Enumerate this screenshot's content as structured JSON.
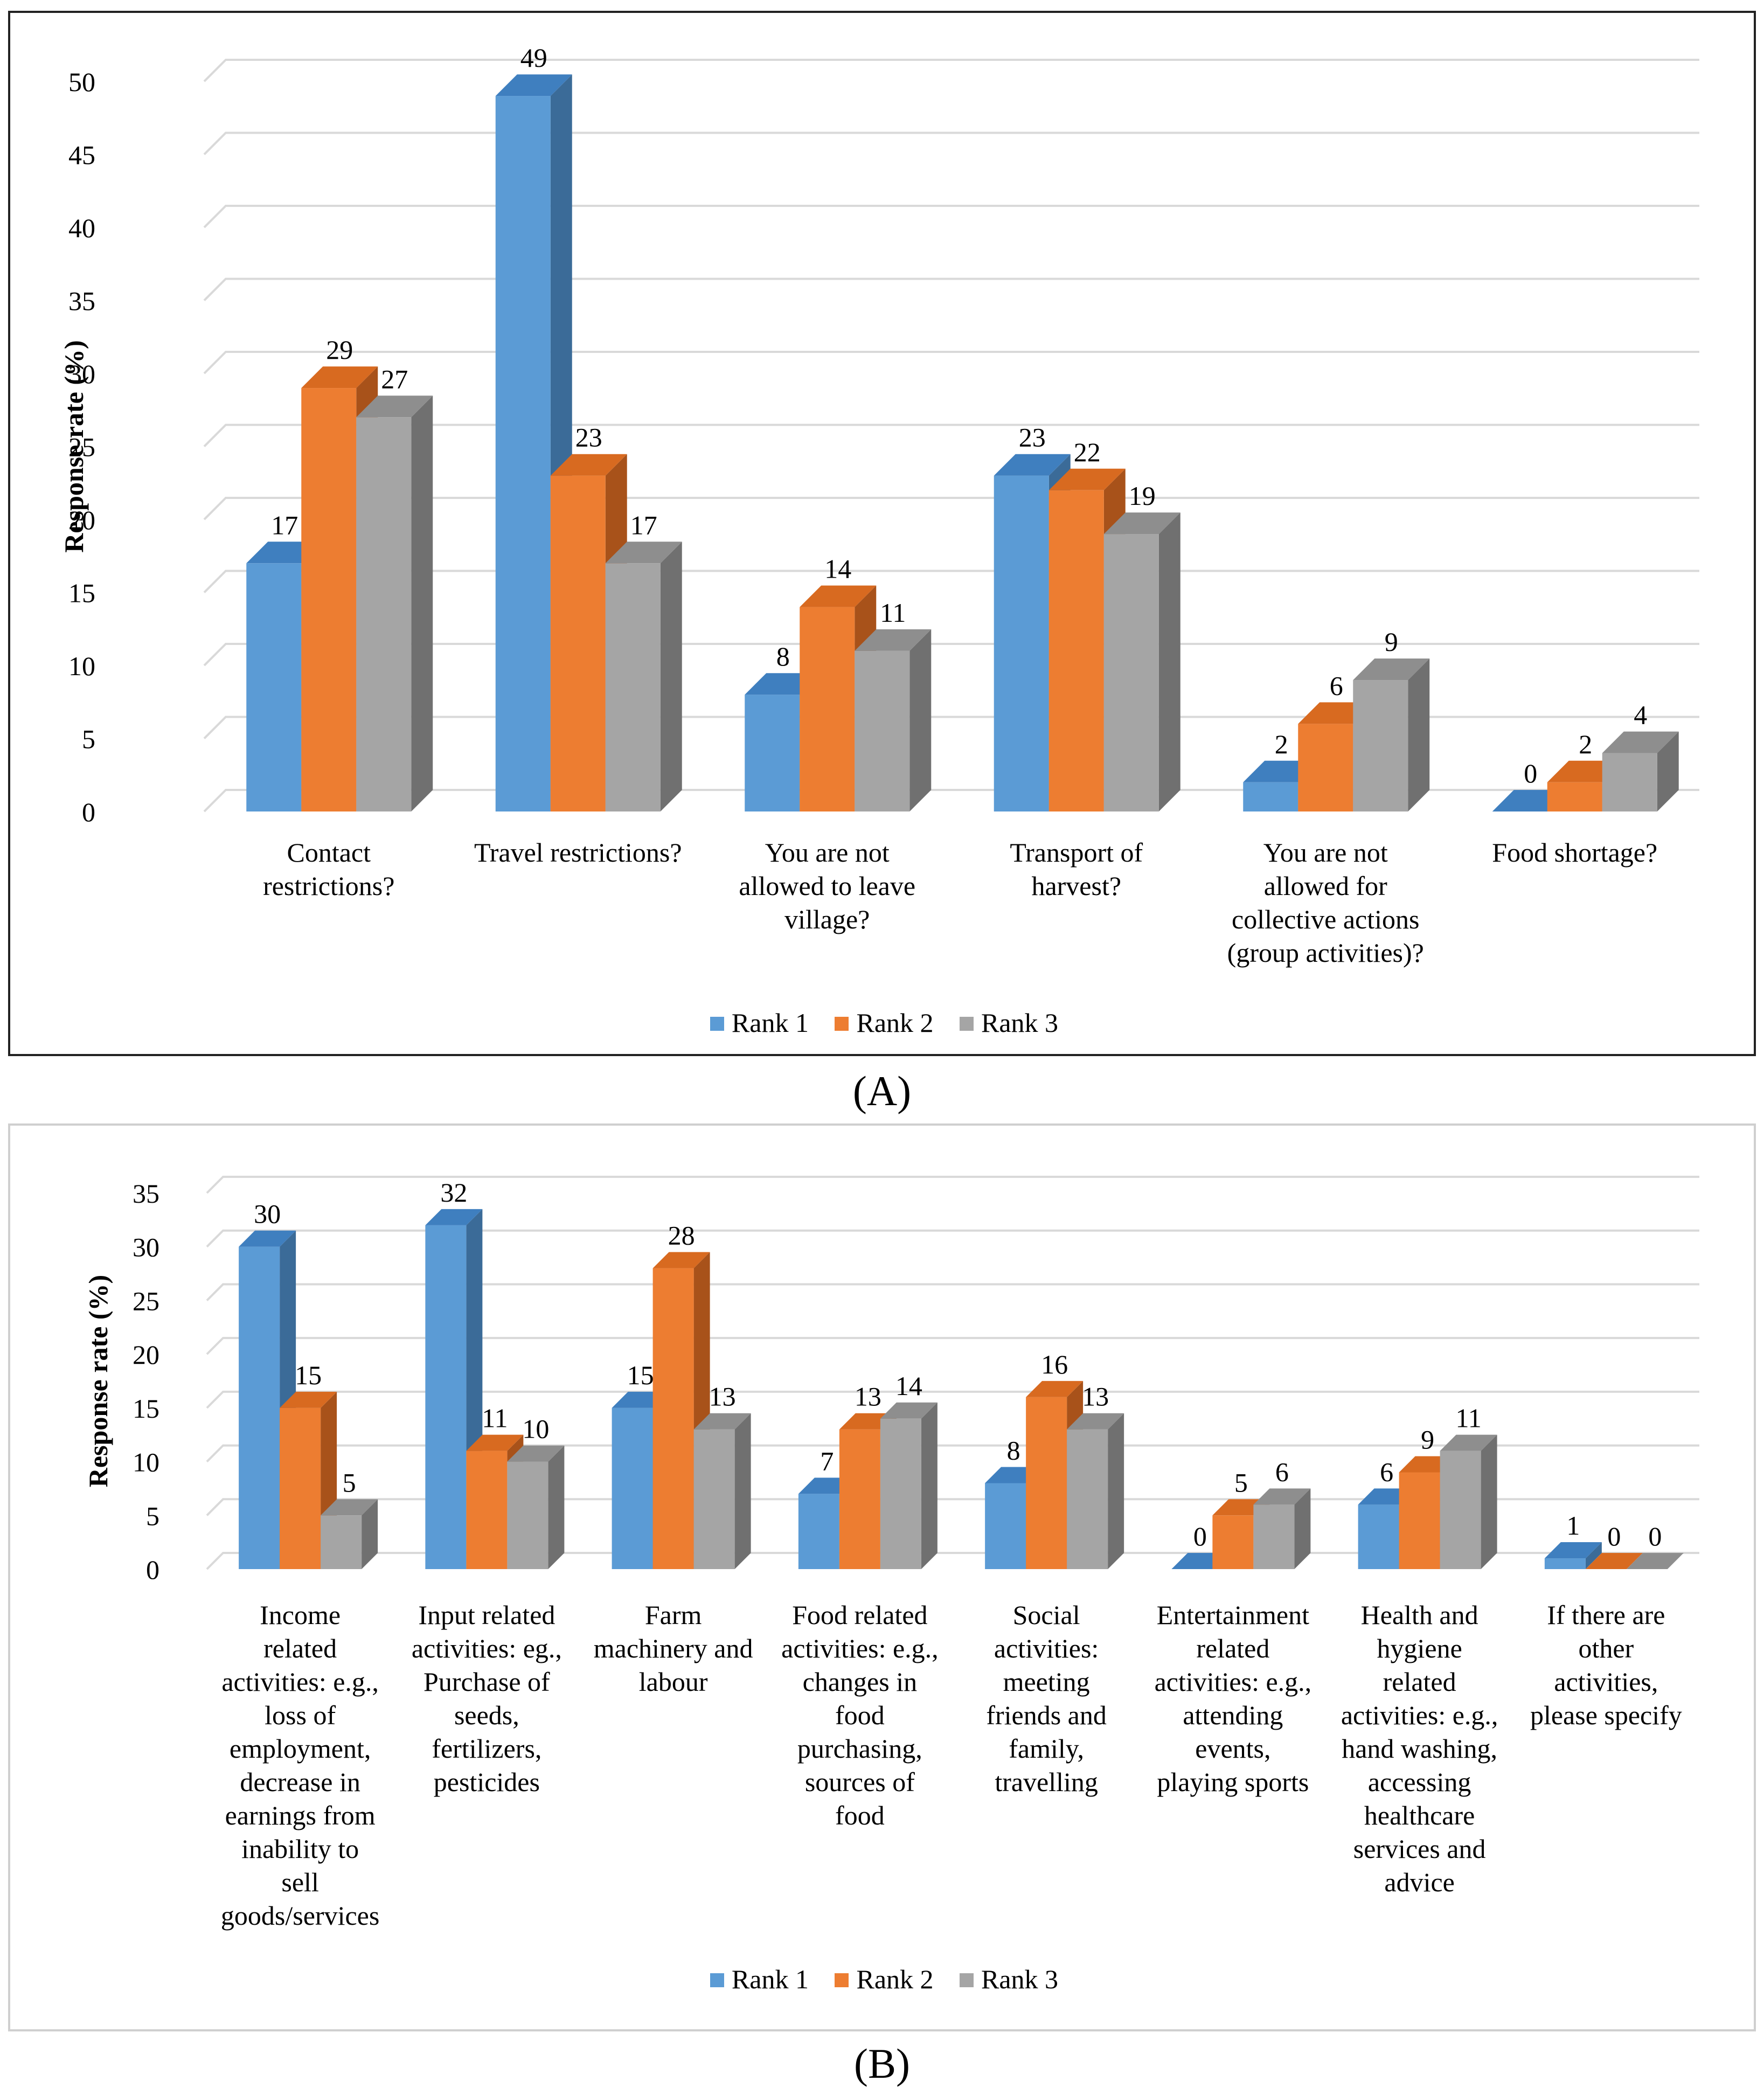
{
  "colors": {
    "rank1": "#5b9bd5",
    "rank1_top": "#3f7fbf",
    "rank1_side": "#3b6b98",
    "rank2": "#ed7d31",
    "rank2_top": "#d86a20",
    "rank2_side": "#a8521a",
    "rank3": "#a5a5a5",
    "rank3_top": "#8e8e8e",
    "rank3_side": "#707070",
    "grid": "#d9d9d9"
  },
  "panels": {
    "A": "(A)",
    "B": "(B)"
  },
  "chart_data": [
    {
      "id": "A",
      "type": "bar",
      "ylabel": "Response rate (%)",
      "ylim": [
        0,
        50
      ],
      "ytick_step": 5,
      "yticks": [
        "0",
        "5",
        "10",
        "15",
        "20",
        "25",
        "30",
        "35",
        "40",
        "45",
        "50"
      ],
      "categories": [
        [
          "Contact",
          "restrictions?"
        ],
        [
          "Travel restrictions?"
        ],
        [
          "You are not",
          "allowed to leave",
          "village?"
        ],
        [
          "Transport of",
          "harvest?"
        ],
        [
          "You are not",
          "allowed for",
          "collective actions",
          "(group activities)?"
        ],
        [
          "Food shortage?"
        ]
      ],
      "series": [
        {
          "name": "Rank 1",
          "values": [
            17,
            49,
            8,
            23,
            2,
            0
          ]
        },
        {
          "name": "Rank 2",
          "values": [
            29,
            23,
            14,
            22,
            6,
            2
          ]
        },
        {
          "name": "Rank 3",
          "values": [
            27,
            17,
            11,
            19,
            9,
            4
          ]
        }
      ],
      "legend": [
        "Rank 1",
        "Rank 2",
        "Rank 3"
      ]
    },
    {
      "id": "B",
      "type": "bar",
      "ylabel": "Response rate (%)",
      "ylim": [
        0,
        35
      ],
      "ytick_step": 5,
      "yticks": [
        "0",
        "5",
        "10",
        "15",
        "20",
        "25",
        "30",
        "35"
      ],
      "categories": [
        [
          "Income",
          "related",
          "activities: e.g.,",
          "loss of",
          "employment,",
          "decrease in",
          "earnings from",
          "inability to",
          "sell",
          "goods/services"
        ],
        [
          "Input related",
          "activities: eg.,",
          "Purchase of",
          "seeds,",
          "fertilizers,",
          "pesticides"
        ],
        [
          "Farm",
          "machinery and",
          "labour"
        ],
        [
          "Food related",
          "activities: e.g.,",
          "changes in",
          "food",
          "purchasing,",
          "sources of",
          "food"
        ],
        [
          "Social",
          "activities:",
          "meeting",
          "friends and",
          "family,",
          "travelling"
        ],
        [
          "Entertainment",
          "related",
          "activities: e.g.,",
          "attending",
          "events,",
          "playing sports"
        ],
        [
          "Health and",
          "hygiene",
          "related",
          "activities: e.g.,",
          "hand washing,",
          "accessing",
          "healthcare",
          "services and",
          "advice"
        ],
        [
          "If there are",
          "other",
          "activities,",
          "please specify"
        ]
      ],
      "series": [
        {
          "name": "Rank 1",
          "values": [
            30,
            32,
            15,
            7,
            8,
            0,
            6,
            1
          ]
        },
        {
          "name": "Rank 2",
          "values": [
            15,
            11,
            28,
            13,
            16,
            5,
            9,
            0
          ]
        },
        {
          "name": "Rank 3",
          "values": [
            5,
            10,
            13,
            14,
            13,
            6,
            11,
            0
          ]
        }
      ],
      "legend": [
        "Rank 1",
        "Rank 2",
        "Rank 3"
      ]
    }
  ]
}
